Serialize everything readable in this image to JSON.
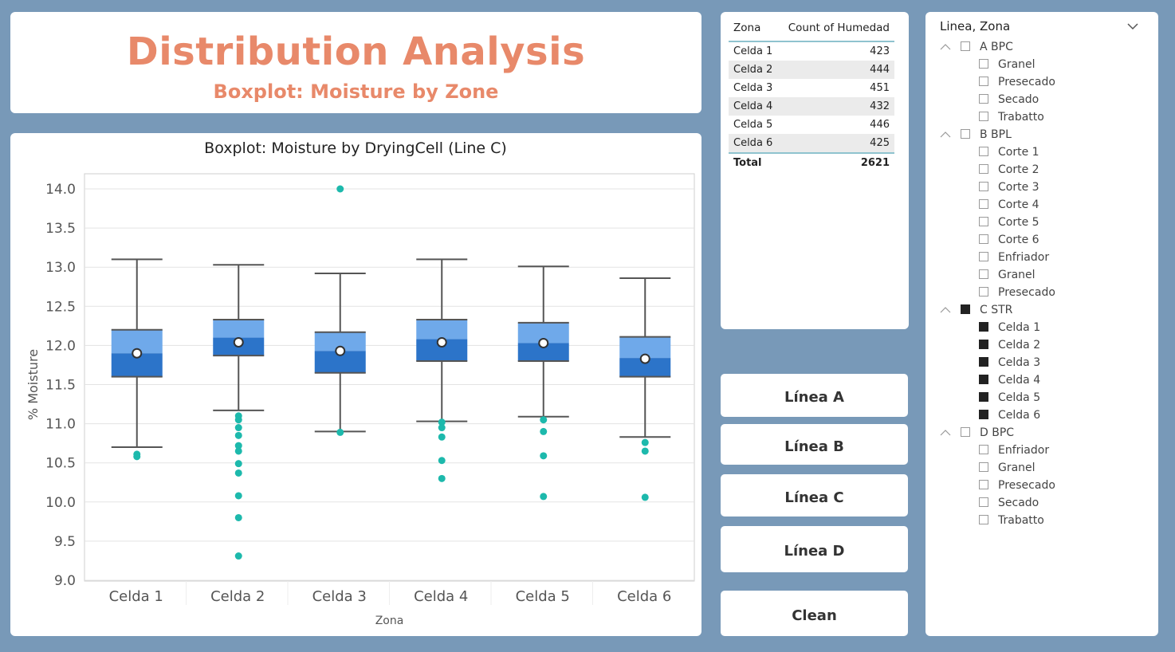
{
  "header": {
    "title": "Distribution Analysis",
    "subtitle": "Boxplot: Moisture by Zone"
  },
  "chart_data": {
    "type": "boxplot",
    "title": "Boxplot: Moisture by DryingCell (Line C)",
    "xlabel": "Zona",
    "ylabel": "% Moisture",
    "ylim": [
      9.0,
      14.0
    ],
    "yticks": [
      "14.0",
      "13.5",
      "13.0",
      "12.5",
      "12.0",
      "11.5",
      "11.0",
      "10.5",
      "10.0",
      "9.5",
      "9.0"
    ],
    "categories": [
      "Celda 1",
      "Celda 2",
      "Celda 3",
      "Celda 4",
      "Celda 5",
      "Celda 6"
    ],
    "boxes": [
      {
        "min": 10.7,
        "q1": 11.6,
        "median": 11.9,
        "q3": 12.2,
        "max": 13.1,
        "mean": 11.9,
        "outliers": [
          10.61,
          10.58
        ]
      },
      {
        "min": 11.17,
        "q1": 11.87,
        "median": 12.1,
        "q3": 12.33,
        "max": 13.03,
        "mean": 12.04,
        "outliers": [
          11.1,
          11.05,
          10.95,
          10.85,
          10.72,
          10.65,
          10.49,
          10.37,
          10.08,
          9.8,
          9.31
        ]
      },
      {
        "min": 10.9,
        "q1": 11.65,
        "median": 11.93,
        "q3": 12.17,
        "max": 12.92,
        "mean": 11.93,
        "outliers": [
          10.89,
          14.0
        ]
      },
      {
        "min": 11.03,
        "q1": 11.8,
        "median": 12.08,
        "q3": 12.33,
        "max": 13.1,
        "mean": 12.04,
        "outliers": [
          11.02,
          10.95,
          10.83,
          10.53,
          10.3
        ]
      },
      {
        "min": 11.09,
        "q1": 11.8,
        "median": 12.03,
        "q3": 12.29,
        "max": 13.01,
        "mean": 12.03,
        "outliers": [
          11.05,
          10.9,
          10.59,
          10.07
        ]
      },
      {
        "min": 10.83,
        "q1": 11.6,
        "median": 11.84,
        "q3": 12.11,
        "max": 12.86,
        "mean": 11.83,
        "outliers": [
          10.76,
          10.65,
          10.06
        ]
      }
    ],
    "colors": {
      "box_upper": "#6fa9ea",
      "box_lower": "#2c74c9",
      "outlier": "#1db9ac",
      "whisker": "#555555"
    },
    "grid": true
  },
  "table": {
    "col_zona": "Zona",
    "col_count": "Count of Humedad",
    "rows": [
      {
        "zona": "Celda 1",
        "count": "423"
      },
      {
        "zona": "Celda 2",
        "count": "444"
      },
      {
        "zona": "Celda 3",
        "count": "451"
      },
      {
        "zona": "Celda 4",
        "count": "432"
      },
      {
        "zona": "Celda 5",
        "count": "446"
      },
      {
        "zona": "Celda 6",
        "count": "425"
      }
    ],
    "total_label": "Total",
    "total_value": "2621"
  },
  "buttons": {
    "linea_a": "Línea A",
    "linea_b": "Línea B",
    "linea_c": "Línea C",
    "linea_d": "Línea D",
    "clean": "Clean"
  },
  "slicer": {
    "header": "Linea, Zona",
    "groups": [
      {
        "label": "A BPC",
        "checked": false,
        "children": [
          {
            "label": "Granel",
            "checked": false
          },
          {
            "label": "Presecado",
            "checked": false
          },
          {
            "label": "Secado",
            "checked": false
          },
          {
            "label": "Trabatto",
            "checked": false
          }
        ]
      },
      {
        "label": "B BPL",
        "checked": false,
        "children": [
          {
            "label": "Corte 1",
            "checked": false
          },
          {
            "label": "Corte 2",
            "checked": false
          },
          {
            "label": "Corte 3",
            "checked": false
          },
          {
            "label": "Corte 4",
            "checked": false
          },
          {
            "label": "Corte 5",
            "checked": false
          },
          {
            "label": "Corte 6",
            "checked": false
          },
          {
            "label": "Enfriador",
            "checked": false
          },
          {
            "label": "Granel",
            "checked": false
          },
          {
            "label": "Presecado",
            "checked": false
          }
        ]
      },
      {
        "label": "C STR",
        "checked": true,
        "children": [
          {
            "label": "Celda 1",
            "checked": true
          },
          {
            "label": "Celda 2",
            "checked": true
          },
          {
            "label": "Celda 3",
            "checked": true
          },
          {
            "label": "Celda 4",
            "checked": true
          },
          {
            "label": "Celda 5",
            "checked": true
          },
          {
            "label": "Celda 6",
            "checked": true
          }
        ]
      },
      {
        "label": "D BPC",
        "checked": false,
        "children": [
          {
            "label": "Enfriador",
            "checked": false
          },
          {
            "label": "Granel",
            "checked": false
          },
          {
            "label": "Presecado",
            "checked": false
          },
          {
            "label": "Secado",
            "checked": false
          },
          {
            "label": "Trabatto",
            "checked": false
          }
        ]
      }
    ]
  }
}
